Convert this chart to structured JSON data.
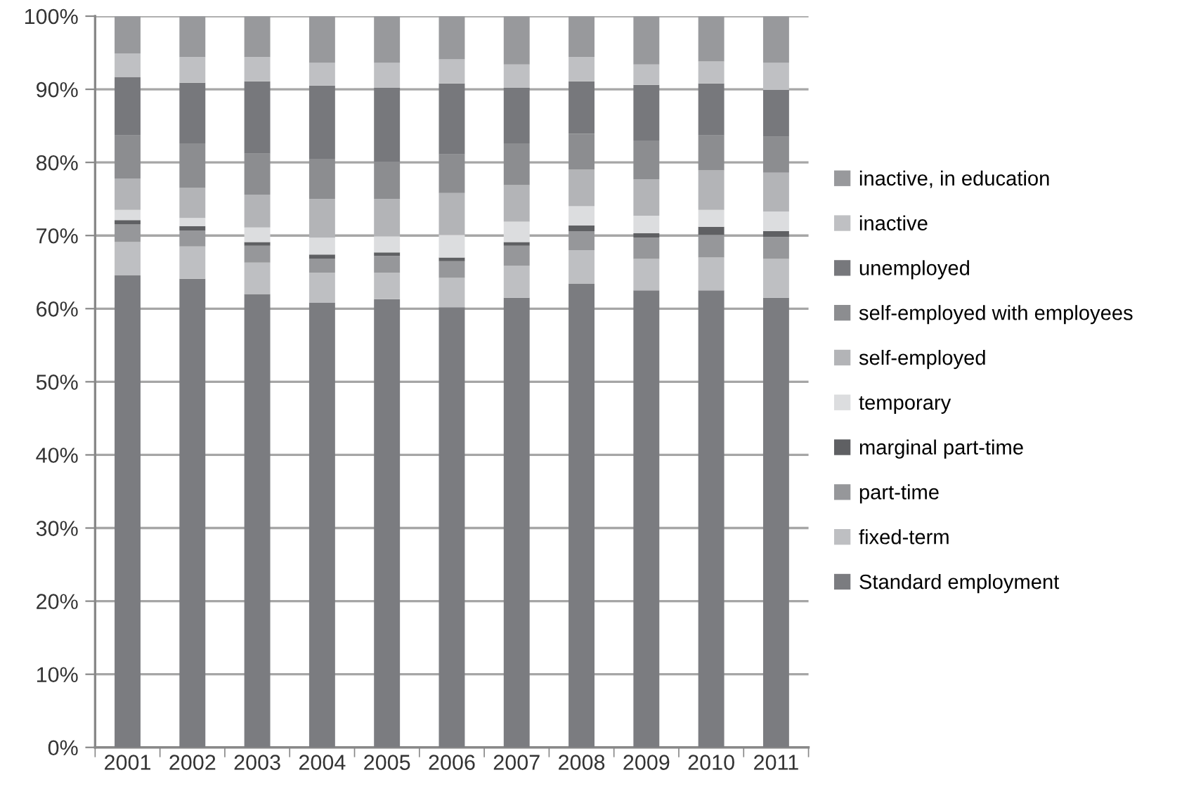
{
  "chart_data": {
    "type": "bar",
    "stacked": true,
    "categories": [
      "2001",
      "2002",
      "2003",
      "2004",
      "2005",
      "2006",
      "2007",
      "2008",
      "2009",
      "2010",
      "2011"
    ],
    "ylim": [
      0,
      100
    ],
    "yticks": [
      {
        "value": 0,
        "label": "0%"
      },
      {
        "value": 10,
        "label": "10%"
      },
      {
        "value": 20,
        "label": "20%"
      },
      {
        "value": 30,
        "label": "30%"
      },
      {
        "value": 40,
        "label": "40%"
      },
      {
        "value": 50,
        "label": "50%"
      },
      {
        "value": 60,
        "label": "60%"
      },
      {
        "value": 70,
        "label": "70%"
      },
      {
        "value": 80,
        "label": "80%"
      },
      {
        "value": 90,
        "label": "90%"
      },
      {
        "value": 100,
        "label": "100%"
      }
    ],
    "grid": "y",
    "legend": "right",
    "series": [
      {
        "name": "Standard employment",
        "color": "#7b7c80",
        "values": [
          64.6,
          64.1,
          62.0,
          60.8,
          61.3,
          60.2,
          61.5,
          63.4,
          62.5,
          62.5,
          61.5
        ]
      },
      {
        "name": "fixed-term",
        "color": "#bebfc2",
        "values": [
          4.5,
          4.4,
          4.3,
          4.1,
          3.6,
          4.0,
          4.4,
          4.6,
          4.3,
          4.5,
          5.3
        ]
      },
      {
        "name": "part-time",
        "color": "#96979a",
        "values": [
          2.4,
          2.2,
          2.3,
          1.9,
          2.3,
          2.3,
          2.7,
          2.6,
          2.9,
          3.1,
          3.0
        ]
      },
      {
        "name": "marginal part-time",
        "color": "#5f6063",
        "values": [
          0.6,
          0.6,
          0.5,
          0.6,
          0.5,
          0.5,
          0.5,
          0.8,
          0.6,
          1.1,
          0.8
        ]
      },
      {
        "name": "temporary",
        "color": "#dcdddf",
        "values": [
          1.4,
          1.1,
          2.0,
          2.3,
          2.2,
          3.1,
          2.8,
          2.6,
          2.4,
          2.3,
          2.7
        ]
      },
      {
        "name": "self-employed",
        "color": "#b3b4b7",
        "values": [
          4.3,
          4.1,
          4.5,
          5.3,
          5.1,
          5.7,
          5.0,
          5.0,
          5.0,
          5.4,
          5.3
        ]
      },
      {
        "name": "self-employed with employees",
        "color": "#8c8d90",
        "values": [
          5.9,
          6.1,
          5.6,
          5.5,
          5.1,
          5.3,
          5.7,
          4.9,
          5.3,
          4.8,
          4.9
        ]
      },
      {
        "name": "unemployed",
        "color": "#77787c",
        "values": [
          8.0,
          8.3,
          9.9,
          10.0,
          10.1,
          9.7,
          7.6,
          7.2,
          7.6,
          7.1,
          6.4
        ]
      },
      {
        "name": "inactive",
        "color": "#bfc0c3",
        "values": [
          3.2,
          3.5,
          3.3,
          3.1,
          3.4,
          3.3,
          3.2,
          3.3,
          2.8,
          3.0,
          3.7
        ]
      },
      {
        "name": "inactive, in education",
        "color": "#98999c",
        "values": [
          5.1,
          5.6,
          5.6,
          6.4,
          6.4,
          5.9,
          6.6,
          5.6,
          6.6,
          6.2,
          6.4
        ]
      }
    ]
  }
}
